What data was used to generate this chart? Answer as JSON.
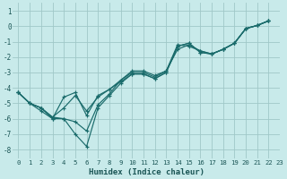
{
  "xlabel": "Humidex (Indice chaleur)",
  "background_color": "#c8eaea",
  "grid_color": "#a0c8c8",
  "line_color": "#1a6b6b",
  "xlim": [
    -0.5,
    23
  ],
  "ylim": [
    -8.6,
    1.5
  ],
  "yticks": [
    1,
    0,
    -1,
    -2,
    -3,
    -4,
    -5,
    -6,
    -7,
    -8
  ],
  "xticks": [
    0,
    1,
    2,
    3,
    4,
    5,
    6,
    7,
    8,
    9,
    10,
    11,
    12,
    13,
    14,
    15,
    16,
    17,
    18,
    19,
    20,
    21,
    22,
    23
  ],
  "xtick_labels": [
    "0",
    "1",
    "2",
    "3",
    "4",
    "5",
    "6",
    "7",
    "8",
    "9",
    "10",
    "11",
    "12",
    "13",
    "14",
    "15",
    "16",
    "17",
    "18",
    "19",
    "20",
    "21",
    "22",
    "23"
  ],
  "series": [
    {
      "x": [
        0,
        1,
        2,
        3,
        4,
        5,
        6,
        7,
        8,
        9,
        10,
        11,
        12,
        13,
        14,
        15,
        16,
        17,
        18,
        19,
        20,
        21,
        22
      ],
      "y": [
        -4.3,
        -5.0,
        -5.5,
        -6.0,
        -6.0,
        -6.2,
        -6.8,
        -5.1,
        -4.4,
        -3.5,
        -2.9,
        -2.9,
        -3.2,
        -2.9,
        -1.2,
        -1.3,
        -1.6,
        -1.8,
        -1.5,
        -1.1,
        -0.15,
        0.05,
        0.35
      ]
    },
    {
      "x": [
        0,
        1,
        2,
        3,
        4,
        5,
        6,
        7,
        8,
        9,
        10,
        11,
        12,
        13,
        14,
        15,
        16,
        17,
        18,
        19,
        20,
        21,
        22
      ],
      "y": [
        -4.3,
        -5.0,
        -5.3,
        -6.0,
        -4.6,
        -4.3,
        -5.8,
        -4.5,
        -4.1,
        -3.5,
        -3.0,
        -3.0,
        -3.3,
        -2.9,
        -1.5,
        -1.2,
        -1.6,
        -1.8,
        -1.5,
        -1.1,
        -0.15,
        0.05,
        0.35
      ]
    },
    {
      "x": [
        0,
        1,
        2,
        3,
        4,
        5,
        6,
        7,
        8,
        9,
        10,
        11,
        12,
        13,
        14,
        15,
        16,
        17,
        18,
        19,
        20,
        21,
        22
      ],
      "y": [
        -4.3,
        -5.0,
        -5.3,
        -5.9,
        -6.0,
        -7.0,
        -7.8,
        -5.3,
        -4.5,
        -3.7,
        -3.1,
        -3.1,
        -3.4,
        -3.0,
        -1.3,
        -1.1,
        -1.7,
        -1.8,
        -1.5,
        -1.1,
        -0.15,
        0.05,
        0.35
      ]
    },
    {
      "x": [
        0,
        1,
        2,
        3,
        4,
        5,
        6,
        7,
        8,
        9,
        10,
        11,
        12,
        13,
        14,
        15,
        16,
        17,
        18,
        19,
        20,
        21,
        22
      ],
      "y": [
        -4.3,
        -5.0,
        -5.3,
        -5.9,
        -5.3,
        -4.5,
        -5.5,
        -4.6,
        -4.1,
        -3.6,
        -3.1,
        -3.1,
        -3.4,
        -3.0,
        -1.3,
        -1.1,
        -1.7,
        -1.8,
        -1.5,
        -1.1,
        -0.15,
        0.05,
        0.35
      ]
    }
  ]
}
